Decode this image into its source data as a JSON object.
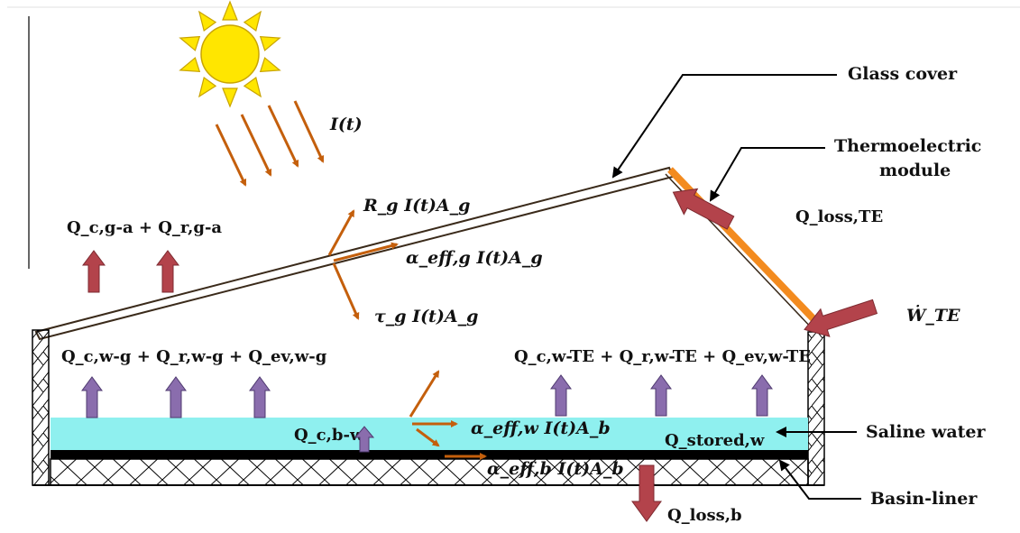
{
  "labels": {
    "glass_cover": "Glass cover",
    "thermoelectric_module": [
      "Thermoelectric",
      "module"
    ],
    "saline_water": "Saline water",
    "basin_liner": "Basin-liner"
  },
  "solar": {
    "irradiance": "I(t)"
  },
  "glass_terms": {
    "reflected": "R_g I(t)A_g",
    "absorbed": "α_eff,g I(t)A_g",
    "transmitted": "τ_g I(t)A_g"
  },
  "water_terms": {
    "absorbed": "α_eff,w I(t)A_b",
    "stored": "Q_stored,w",
    "conv_basin_water": "Q_c,b-w"
  },
  "basin_terms": {
    "absorbed": "α_eff,b I(t)A_b",
    "loss": "Q_loss,b"
  },
  "heat_losses": {
    "glass_to_ambient": "Q_c,g-a + Q_r,g-a",
    "water_to_glass": "Q_c,w-g + Q_r,w-g + Q_ev,w-g",
    "water_to_te": "Q_c,w-TE + Q_r,w-TE + Q_ev,w-TE",
    "te_loss": "Q_loss,TE",
    "te_work": "Ẇ_TE"
  },
  "colors": {
    "sun": "#ffe600",
    "sun_rays": "#f2c400",
    "ray_arrows": "#c45f0c",
    "te_module": "#f38b1f",
    "water": "#8ff0ef",
    "loss_arrow": "#b3434b",
    "internal_arrow": "#8a6dad"
  }
}
